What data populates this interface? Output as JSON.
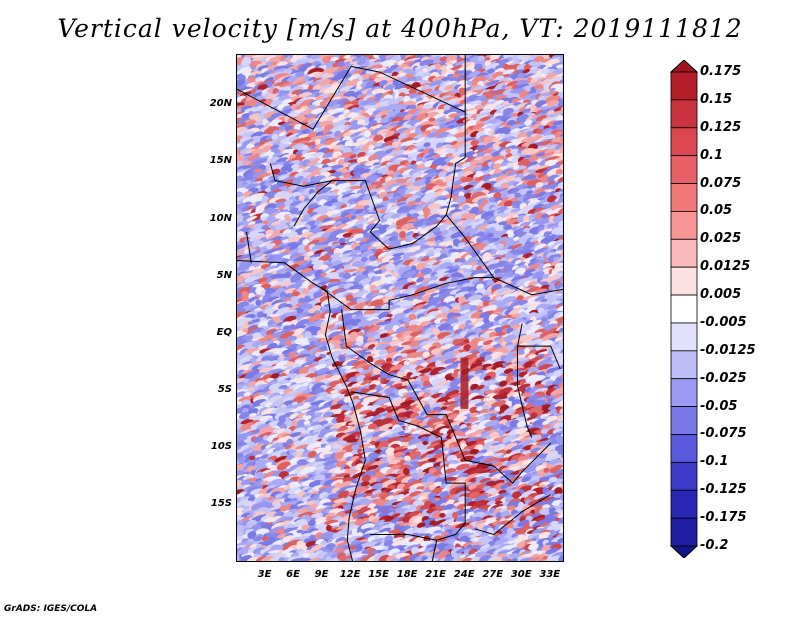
{
  "title": "Vertical velocity [m/s] at 400hPa, VT: 2019111812",
  "credit": "GrADS: IGES/COLA",
  "map": {
    "lat_labels": [
      "20N",
      "15N",
      "10N",
      "5N",
      "EQ",
      "5S",
      "10S",
      "15S"
    ],
    "lat_values": [
      20,
      15,
      10,
      5,
      0,
      -5,
      -10,
      -15
    ],
    "lon_labels": [
      "3E",
      "6E",
      "9E",
      "12E",
      "15E",
      "18E",
      "21E",
      "24E",
      "27E",
      "30E",
      "33E"
    ],
    "lon_values": [
      3,
      6,
      9,
      12,
      15,
      18,
      21,
      24,
      27,
      30,
      33
    ],
    "lon_range": [
      0,
      34.5
    ],
    "lat_range": [
      -20,
      24.5
    ]
  },
  "colorbar": {
    "labels": [
      "0.175",
      "0.15",
      "0.125",
      "0.1",
      "0.075",
      "0.05",
      "0.025",
      "0.0125",
      "0.005",
      "-0.005",
      "-0.0125",
      "-0.025",
      "-0.05",
      "-0.075",
      "-0.1",
      "-0.125",
      "-0.175",
      "-0.2"
    ],
    "colors": [
      "#a0141e",
      "#b41e28",
      "#c8323c",
      "#dc4650",
      "#e65f64",
      "#f07878",
      "#f89696",
      "#fcb9b9",
      "#fde1e1",
      "#ffffff",
      "#e1e1fd",
      "#bebef8",
      "#9a9af2",
      "#7878e6",
      "#5a5adc",
      "#3c3cc8",
      "#2828b4",
      "#1e1ea0",
      "#14148c"
    ]
  }
}
